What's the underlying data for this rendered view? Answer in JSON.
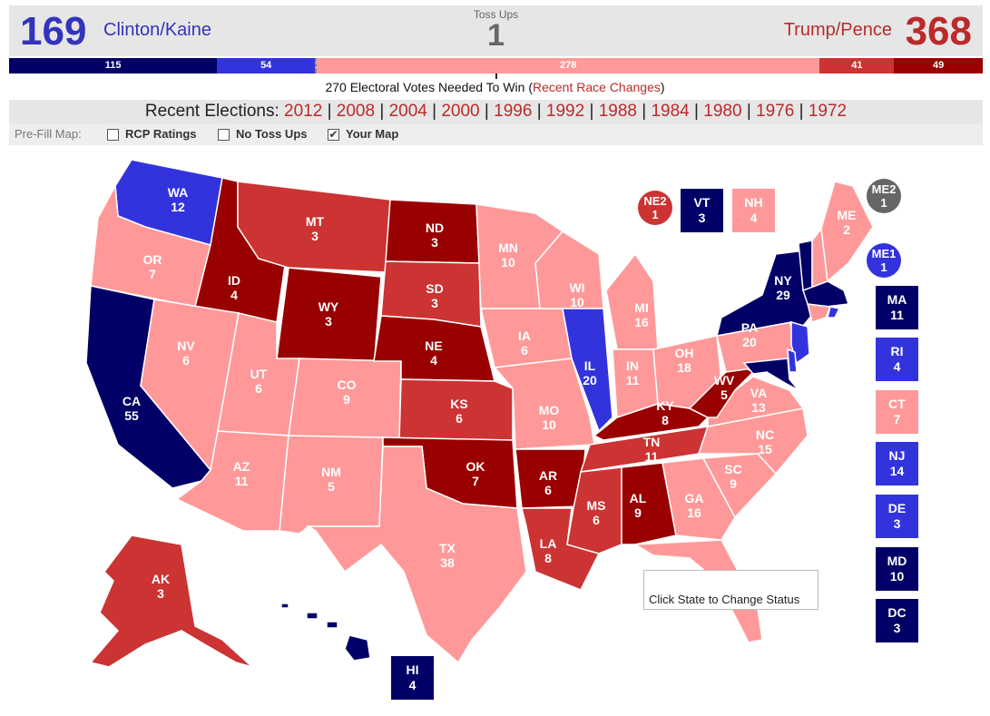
{
  "colors": {
    "safe_dem": "#000066",
    "likely_dem": "#3333dd",
    "toss": "#666666",
    "lean_rep": "#ff9999",
    "likely_rep": "#cc3333",
    "safe_rep": "#990000"
  },
  "header": {
    "dem_count": "169",
    "dem_name": "Clinton/Kaine",
    "toss_label": "Toss Ups",
    "toss_count": "1",
    "rep_name": "Trump/Pence",
    "rep_count": "368"
  },
  "bar": [
    {
      "label": "115",
      "value": 115,
      "color": "#000066"
    },
    {
      "label": "54",
      "value": 54,
      "color": "#3333dd"
    },
    {
      "label": "1",
      "value": 1,
      "color": "#888888"
    },
    {
      "label": "278",
      "value": 278,
      "color": "#ff9999"
    },
    {
      "label": "41",
      "value": 41,
      "color": "#cc3333"
    },
    {
      "label": "49",
      "value": 49,
      "color": "#990000"
    }
  ],
  "needed": {
    "text": "270 Electoral Votes Needed To Win (",
    "link": "Recent Race Changes",
    "close": ")"
  },
  "recent": {
    "label": "Recent Elections: ",
    "years": [
      "2012",
      "2008",
      "2004",
      "2000",
      "1996",
      "1992",
      "1988",
      "1984",
      "1980",
      "1976",
      "1972"
    ]
  },
  "prefill": {
    "label": "Pre-Fill Map:",
    "options": [
      {
        "label": "RCP Ratings",
        "checked": false
      },
      {
        "label": "No Toss Ups",
        "checked": false
      },
      {
        "label": "Your Map",
        "checked": true
      }
    ]
  },
  "states": [
    {
      "abbr": "WA",
      "votes": "12"
    },
    {
      "abbr": "OR",
      "votes": "7"
    },
    {
      "abbr": "CA",
      "votes": "55"
    },
    {
      "abbr": "ID",
      "votes": "4"
    },
    {
      "abbr": "NV",
      "votes": "6"
    },
    {
      "abbr": "MT",
      "votes": "3"
    },
    {
      "abbr": "WY",
      "votes": "3"
    },
    {
      "abbr": "UT",
      "votes": "6"
    },
    {
      "abbr": "AZ",
      "votes": "11"
    },
    {
      "abbr": "CO",
      "votes": "9"
    },
    {
      "abbr": "NM",
      "votes": "5"
    },
    {
      "abbr": "ND",
      "votes": "3"
    },
    {
      "abbr": "SD",
      "votes": "3"
    },
    {
      "abbr": "NE",
      "votes": "4"
    },
    {
      "abbr": "KS",
      "votes": "6"
    },
    {
      "abbr": "OK",
      "votes": "7"
    },
    {
      "abbr": "TX",
      "votes": "38"
    },
    {
      "abbr": "MN",
      "votes": "10"
    },
    {
      "abbr": "IA",
      "votes": "6"
    },
    {
      "abbr": "MO",
      "votes": "10"
    },
    {
      "abbr": "AR",
      "votes": "6"
    },
    {
      "abbr": "LA",
      "votes": "8"
    },
    {
      "abbr": "WI",
      "votes": "10"
    },
    {
      "abbr": "IL",
      "votes": "20"
    },
    {
      "abbr": "MI",
      "votes": "16"
    },
    {
      "abbr": "IN",
      "votes": "11"
    },
    {
      "abbr": "OH",
      "votes": "18"
    },
    {
      "abbr": "KY",
      "votes": "8"
    },
    {
      "abbr": "TN",
      "votes": "11"
    },
    {
      "abbr": "MS",
      "votes": "6"
    },
    {
      "abbr": "AL",
      "votes": "9"
    },
    {
      "abbr": "GA",
      "votes": "16"
    },
    {
      "abbr": "SC",
      "votes": "9"
    },
    {
      "abbr": "NC",
      "votes": "15"
    },
    {
      "abbr": "VA",
      "votes": "13"
    },
    {
      "abbr": "WV",
      "votes": "5"
    },
    {
      "abbr": "PA",
      "votes": "20"
    },
    {
      "abbr": "NY",
      "votes": "29"
    },
    {
      "abbr": "ME",
      "votes": "2"
    },
    {
      "abbr": "AK",
      "votes": "3"
    },
    {
      "abbr": "TX_hidden",
      "votes": ""
    }
  ],
  "boxes": [
    {
      "abbr": "VT",
      "votes": "3",
      "color": "#000066"
    },
    {
      "abbr": "NH",
      "votes": "4",
      "color": "#ff9999"
    },
    {
      "abbr": "MA",
      "votes": "11",
      "color": "#000066"
    },
    {
      "abbr": "RI",
      "votes": "4",
      "color": "#3333dd"
    },
    {
      "abbr": "CT",
      "votes": "7",
      "color": "#ff9999"
    },
    {
      "abbr": "NJ",
      "votes": "14",
      "color": "#3333dd"
    },
    {
      "abbr": "DE",
      "votes": "3",
      "color": "#3333dd"
    },
    {
      "abbr": "MD",
      "votes": "10",
      "color": "#000066"
    },
    {
      "abbr": "DC",
      "votes": "3",
      "color": "#000066"
    },
    {
      "abbr": "HI",
      "votes": "4",
      "color": "#000066"
    }
  ],
  "circles": [
    {
      "abbr": "NE2",
      "votes": "1",
      "color": "#cc3333"
    },
    {
      "abbr": "ME2",
      "votes": "1",
      "color": "#666666"
    },
    {
      "abbr": "ME1",
      "votes": "1",
      "color": "#3333dd"
    }
  ],
  "tooltip": "Click State to Change Status"
}
